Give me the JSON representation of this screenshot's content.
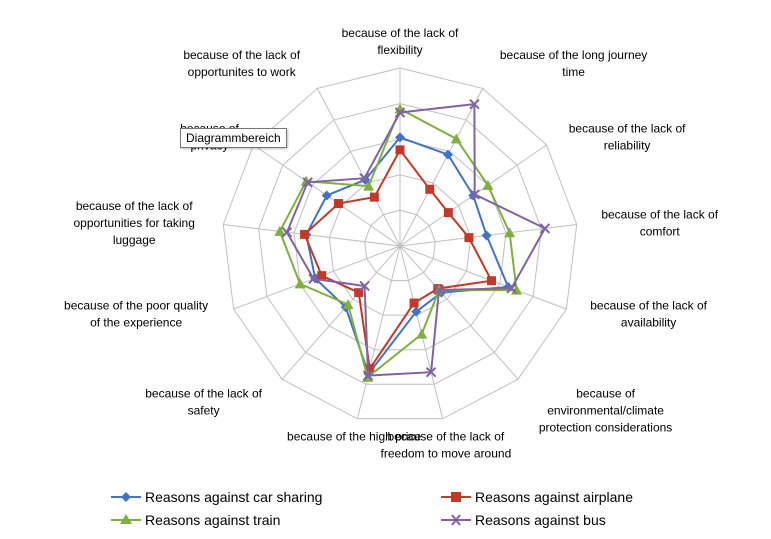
{
  "chart_data": {
    "type": "radar",
    "categories": [
      [
        "because of the lack of",
        "flexibility"
      ],
      [
        "because of the long journey",
        "time"
      ],
      [
        "because of the lack of",
        "reliability"
      ],
      [
        "because of the lack of",
        "comfort"
      ],
      [
        "because of the lack of",
        "availability"
      ],
      [
        "because of",
        "environmental/climate",
        "protection considerations"
      ],
      [
        "because of the lack of",
        "freedom to move around"
      ],
      [
        "because of the high price"
      ],
      [
        "because of the lack of",
        "safety"
      ],
      [
        "because of the poor quality",
        "of the experience"
      ],
      [
        "because of the lack of",
        "opportunities for taking",
        "luggage"
      ],
      [
        "because of",
        "privacy"
      ],
      [
        "because of the lack of",
        "opportunites to work"
      ]
    ],
    "rmax": 10,
    "rings": 5,
    "series": [
      {
        "name": "Reasons against car sharing",
        "color": "#4472C4",
        "marker": "diamond",
        "values": [
          6.1,
          5.8,
          5.0,
          4.9,
          6.5,
          3.5,
          3.8,
          7.4,
          4.6,
          5.1,
          5.3,
          5.0,
          4.2
        ]
      },
      {
        "name": "Reasons against airplane",
        "color": "#C0392B",
        "marker": "square",
        "values": [
          5.4,
          3.6,
          3.3,
          3.9,
          5.5,
          3.2,
          3.3,
          7.1,
          3.5,
          4.7,
          5.4,
          4.2,
          3.1
        ]
      },
      {
        "name": "Reasons against train",
        "color": "#7FB03F",
        "marker": "triangle",
        "values": [
          7.7,
          6.8,
          6.0,
          6.2,
          7.0,
          3.3,
          5.1,
          7.6,
          4.4,
          6.0,
          6.8,
          6.4,
          3.8
        ]
      },
      {
        "name": "Reasons against bus",
        "color": "#8064A2",
        "marker": "x",
        "values": [
          7.5,
          9.0,
          5.1,
          8.2,
          6.7,
          3.3,
          7.3,
          7.5,
          3.0,
          5.2,
          6.4,
          6.3,
          4.3
        ]
      }
    ]
  },
  "legend": [
    {
      "label": "Reasons against car sharing"
    },
    {
      "label": "Reasons against airplane"
    },
    {
      "label": "Reasons against train"
    },
    {
      "label": "Reasons against bus"
    }
  ],
  "tooltip": "Diagrammbereich"
}
